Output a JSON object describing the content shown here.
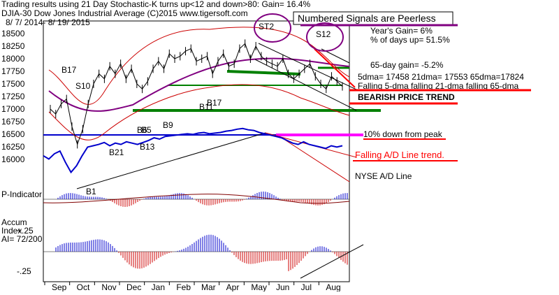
{
  "header": {
    "line1": "Trading results using  21 Day Stochastic-K turns up<12 and down>80: Gain= 16.4%",
    "line2": "DJIA-30  Dow Jones Industrial Average  (C)2015 www.tigersoft.com",
    "line3": "8/ 7/ 2014- 8/ 19/ 2015",
    "boxed_title": "Numbered Signals are Peerless"
  },
  "stats": {
    "years_gain": "Year's Gain= 6%",
    "pct_days_up": "% of days up= 51.5%",
    "gain_65day": "65-day gain= -5.2%",
    "dma_values": "5dma= 17458 21dma= 17553 65dma=17824",
    "falling_note": "Falling 5-dma falling 21-dma falling 65-dma",
    "trend": "BEARISH PRICE TREND",
    "down_from_peak": "10% down from peak",
    "ad_trend": "Falling A/D Line trend.",
    "nyse_label": "NYSE A/D Line"
  },
  "panels": {
    "p_indicator": "P-Indicator",
    "accum_line1": "Accum",
    "accum_line2": "Index",
    "accum_line3": "AI= 72/200",
    "accum_top": "+.25",
    "accum_bottom": "-.25"
  },
  "signals": [
    "B17",
    "S10",
    "B21",
    "B1",
    "B13",
    "B9",
    "B11",
    "B17",
    "S12",
    "ST2",
    "B6",
    "B5"
  ],
  "colors": {
    "price": "#000000",
    "ma_band": "#cc0000",
    "support": "#008000",
    "ad_line": "#0000cc",
    "highlight": "#ff00ff",
    "banner_red": "#ff0000",
    "purple": "#800080"
  },
  "chart_data": {
    "type": "line",
    "y_ticks": [
      "18500",
      "18250",
      "18000",
      "17750",
      "17500",
      "17250",
      "17000",
      "16750",
      "16500",
      "16250",
      "16000"
    ],
    "ylim": [
      16000,
      18500
    ],
    "x_ticks": [
      "Sep",
      "Oct",
      "Nov",
      "Dec",
      "Jan",
      "Feb",
      "Mar",
      "Apr",
      "May",
      "Jun",
      "Jul",
      "Aug"
    ],
    "series": [
      {
        "name": "DJIA-30",
        "values": [
          17000,
          16900,
          17100,
          17200,
          16650,
          16300,
          16600,
          17100,
          17500,
          17700,
          17600,
          17850,
          17700,
          17900,
          17600,
          17800,
          17500,
          17400,
          17550,
          17800,
          17950,
          17800,
          18100,
          18000,
          18050,
          18150,
          18200,
          17950,
          18000,
          18050,
          17700,
          17950,
          18100,
          17850,
          17900,
          18200,
          18300,
          18000,
          18250,
          18050,
          17950,
          17900,
          17850,
          18000,
          17700,
          17600,
          17700,
          17800,
          17900,
          17650,
          17500,
          17400,
          17650,
          17550,
          17450
        ]
      },
      {
        "name": "NYSE A/D Line",
        "values": [
          0.55,
          0.5,
          0.58,
          0.62,
          0.45,
          0.3,
          0.4,
          0.55,
          0.68,
          0.7,
          0.72,
          0.75,
          0.7,
          0.74,
          0.72,
          0.76,
          0.74,
          0.72,
          0.75,
          0.78,
          0.82,
          0.8,
          0.84,
          0.85,
          0.86,
          0.87,
          0.88,
          0.87,
          0.89,
          0.9,
          0.88,
          0.89,
          0.9,
          0.92,
          0.93,
          0.95,
          0.96,
          0.94,
          0.93,
          0.9,
          0.88,
          0.86,
          0.84,
          0.82,
          0.78,
          0.74,
          0.72,
          0.76,
          0.72,
          0.7,
          0.68,
          0.66,
          0.7,
          0.68,
          0.7
        ]
      }
    ]
  }
}
